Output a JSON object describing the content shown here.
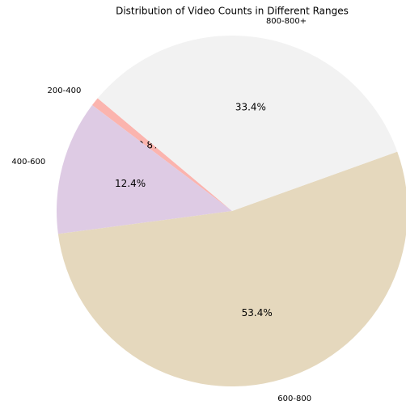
{
  "chart_data": {
    "type": "pie",
    "title": "Distribution of Video Counts in Different Ranges",
    "categories": [
      "200-400",
      "400-600",
      "600-800",
      "800-800+"
    ],
    "values": [
      0.8,
      12.4,
      53.4,
      33.4
    ],
    "value_labels": [
      "0.8%",
      "12.4%",
      "53.4%",
      "33.4%"
    ],
    "colors": [
      "#fbb4ae",
      "#decbe4",
      "#e5d8bd",
      "#f2f2f2"
    ],
    "startangle": 140
  }
}
